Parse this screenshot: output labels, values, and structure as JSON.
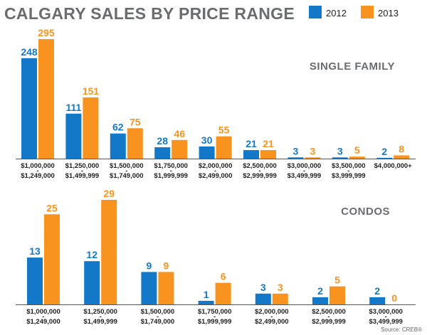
{
  "title": "CALGARY SALES BY PRICE RANGE",
  "legend": [
    {
      "name": "2012",
      "color": "#1478c8"
    },
    {
      "name": "2013",
      "color": "#f7931e"
    }
  ],
  "source": "Source: CREB®",
  "colors": {
    "title": "#6a6d6f",
    "panel_title": "#6a6d6f",
    "axis": "#555555",
    "tick_text": "#222222",
    "series_2012": "#1478c8",
    "series_2013": "#f7931e"
  },
  "chart_data": [
    {
      "type": "bar",
      "title": "SINGLE FAMILY",
      "categories": [
        [
          "$1,000,000",
          "-",
          "$1,249,000"
        ],
        [
          "$1,250,000",
          "-",
          "$1,499,999"
        ],
        [
          "$1,500,000",
          "-",
          "$1,749,000"
        ],
        [
          "$1,750,000",
          "-",
          "$1,999,999"
        ],
        [
          "$2,000,000",
          "-",
          "$2,499,000"
        ],
        [
          "$2,500,000",
          "-",
          "$2,999,999"
        ],
        [
          "$3,000,000",
          "-",
          "$3,499,999"
        ],
        [
          "$3,500,000",
          "-",
          "$3,999,999"
        ],
        [
          "$4,000,000+"
        ]
      ],
      "series": [
        {
          "name": "2012",
          "values": [
            248,
            111,
            62,
            28,
            30,
            21,
            3,
            3,
            2
          ]
        },
        {
          "name": "2013",
          "values": [
            295,
            151,
            75,
            46,
            55,
            21,
            3,
            5,
            8
          ]
        }
      ],
      "ylim": [
        0,
        295
      ],
      "xlabel": "",
      "ylabel": "",
      "grid": false
    },
    {
      "type": "bar",
      "title": "CONDOS",
      "categories": [
        [
          "$1,000,000",
          "-",
          "$1,249,000"
        ],
        [
          "$1,250,000",
          "-",
          "$1,499,999"
        ],
        [
          "$1,500,000",
          "-",
          "$1,749,000"
        ],
        [
          "$1,750,000",
          "-",
          "$1,999,999"
        ],
        [
          "$2,000,000",
          "-",
          "$2,499,000"
        ],
        [
          "$2,500,000",
          "-",
          "$2,999,999"
        ],
        [
          "$3,000,000",
          "-",
          "$3,499,999"
        ]
      ],
      "series": [
        {
          "name": "2012",
          "values": [
            13,
            12,
            9,
            1,
            3,
            2,
            2
          ]
        },
        {
          "name": "2013",
          "values": [
            25,
            29,
            9,
            6,
            3,
            5,
            0
          ]
        }
      ],
      "ylim": [
        0,
        29
      ],
      "xlabel": "",
      "ylabel": "",
      "grid": false
    }
  ]
}
